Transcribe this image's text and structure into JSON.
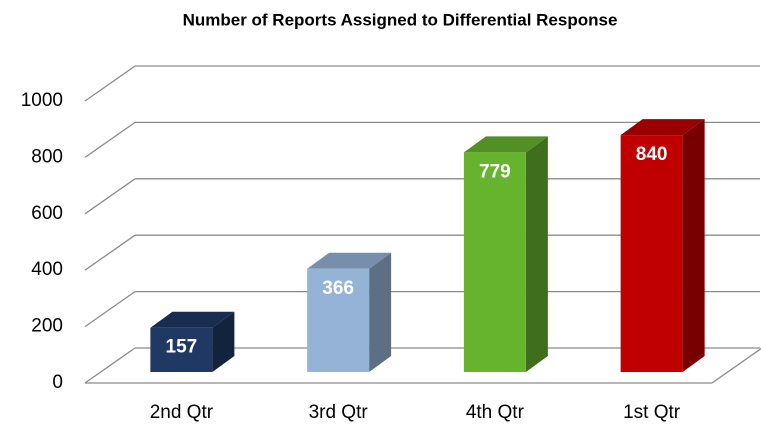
{
  "chart_data": {
    "type": "bar3d",
    "title": "Number of Reports Assigned to Differential Response",
    "categories": [
      "2nd Qtr",
      "3rd Qtr",
      "4th Qtr",
      "1st Qtr"
    ],
    "values": [
      157,
      366,
      779,
      840
    ],
    "colors": [
      "#1f3864",
      "#95b3d7",
      "#66b32e",
      "#c00000"
    ],
    "ylim": [
      0,
      1000
    ],
    "yticks": [
      0,
      200,
      400,
      600,
      800,
      1000
    ],
    "grid": true
  }
}
